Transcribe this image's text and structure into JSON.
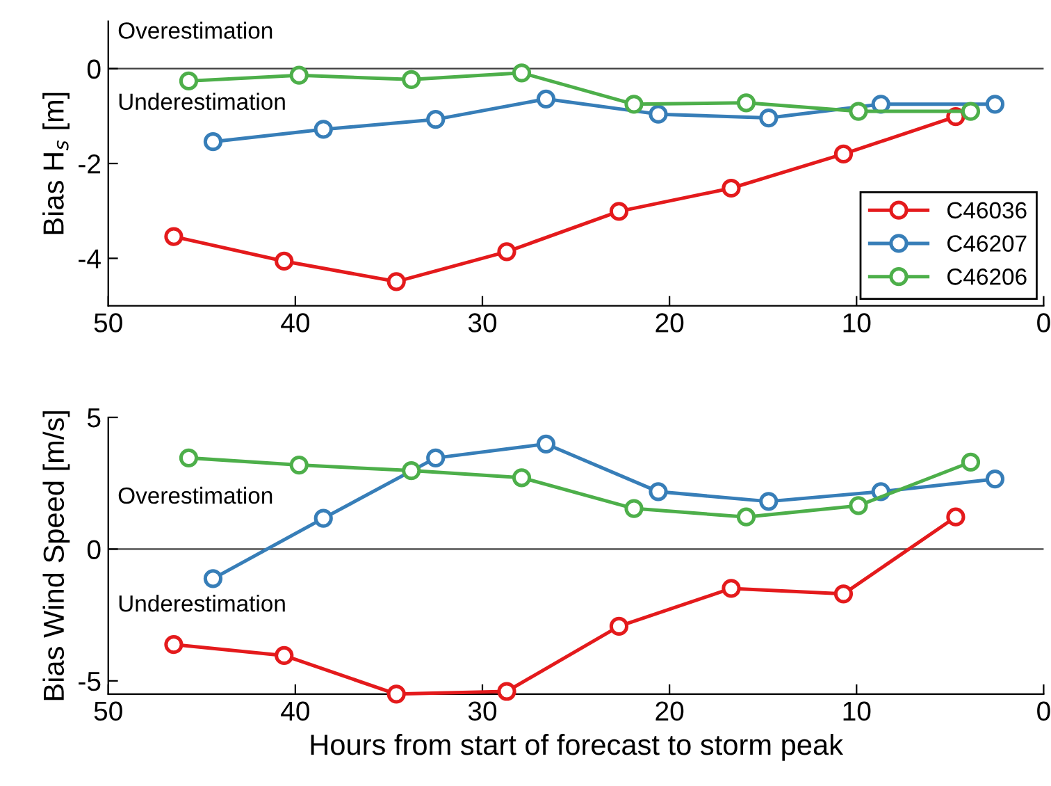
{
  "chart_data": [
    {
      "type": "line",
      "ylabel": "Bias H$_{s}$ [m]",
      "xlim": [
        50,
        0
      ],
      "xticks": [
        50,
        40,
        30,
        20,
        10,
        0
      ],
      "ylim": [
        -5,
        1
      ],
      "yticks": [
        0,
        -2,
        -4
      ],
      "marker": "circle",
      "legend": "bottom right",
      "grid": false,
      "ref_lines": [
        {
          "axis": "y",
          "value": 0,
          "color": "#404040"
        }
      ],
      "annotations": [
        "Overestimation",
        "Underestimation"
      ],
      "series": [
        {
          "name": "C46036",
          "color": "#e41a1c",
          "x": [
            46.5,
            40.6,
            34.6,
            28.7,
            22.7,
            16.7,
            10.7,
            4.7
          ],
          "values": [
            -3.54,
            -4.06,
            -4.49,
            -3.86,
            -3.01,
            -2.52,
            -1.8,
            -1.01
          ]
        },
        {
          "name": "C46207",
          "color": "#377eb8",
          "x": [
            44.4,
            38.5,
            32.5,
            26.6,
            20.6,
            14.7,
            8.7,
            2.6
          ],
          "values": [
            -1.54,
            -1.28,
            -1.07,
            -0.64,
            -0.96,
            -1.04,
            -0.75,
            -0.75
          ]
        },
        {
          "name": "C46206",
          "color": "#4daf4a",
          "x": [
            45.7,
            39.8,
            33.8,
            27.9,
            21.9,
            15.9,
            9.9,
            3.9
          ],
          "values": [
            -0.26,
            -0.14,
            -0.23,
            -0.09,
            -0.75,
            -0.72,
            -0.9,
            -0.9
          ]
        }
      ]
    },
    {
      "type": "line",
      "ylabel": "Bias Wind Speed [m/s]",
      "xlabel": "Hours from start of forecast to storm peak",
      "xlim": [
        50,
        0
      ],
      "xticks": [
        50,
        40,
        30,
        20,
        10,
        0
      ],
      "ylim": [
        -5.5,
        5
      ],
      "yticks": [
        -5,
        0,
        5
      ],
      "marker": "circle",
      "grid": false,
      "ref_lines": [
        {
          "axis": "y",
          "value": 0,
          "color": "#404040"
        }
      ],
      "annotations": [
        "Overestimation",
        "Underestimation"
      ],
      "series": [
        {
          "color": "#e41a1c",
          "x": [
            46.5,
            40.6,
            34.6,
            28.7,
            22.7,
            16.7,
            10.7,
            4.7
          ],
          "values": [
            -3.62,
            -4.04,
            -5.5,
            -5.4,
            -2.93,
            -1.49,
            -1.7,
            1.22
          ]
        },
        {
          "color": "#377eb8",
          "x": [
            44.4,
            38.5,
            32.5,
            26.6,
            20.6,
            14.7,
            8.7,
            2.6
          ],
          "values": [
            -1.12,
            1.17,
            3.46,
            3.99,
            2.18,
            1.81,
            2.18,
            2.66
          ]
        },
        {
          "color": "#4daf4a",
          "x": [
            45.7,
            39.8,
            33.8,
            27.9,
            21.9,
            15.9,
            9.9,
            3.9
          ],
          "values": [
            3.46,
            3.19,
            2.98,
            2.71,
            1.54,
            1.22,
            1.65,
            3.3
          ]
        }
      ]
    }
  ]
}
